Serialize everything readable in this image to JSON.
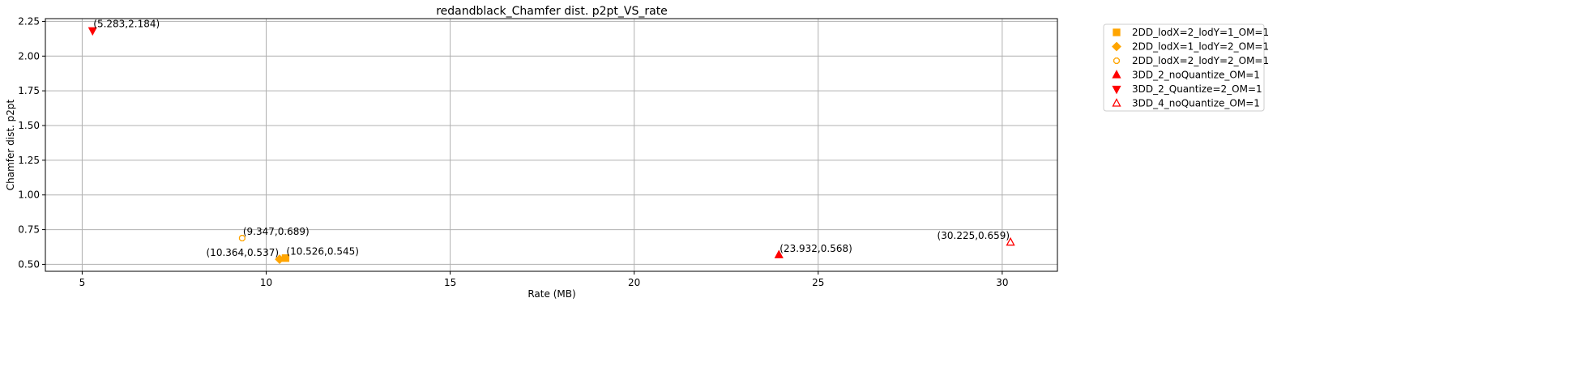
{
  "chart_data": {
    "type": "scatter",
    "title": "redandblack_Chamfer dist. p2pt_VS_rate",
    "xlabel": "Rate (MB)",
    "ylabel": "Chamfer dist. p2pt",
    "xlim": [
      4.0,
      31.5
    ],
    "ylim": [
      0.45,
      2.27
    ],
    "xticks": [
      5,
      10,
      15,
      20,
      25,
      30
    ],
    "yticks": [
      0.5,
      0.75,
      1.0,
      1.25,
      1.5,
      1.75,
      2.0,
      2.25
    ],
    "xtick_labels": [
      "5",
      "10",
      "15",
      "20",
      "25",
      "30"
    ],
    "ytick_labels": [
      "0.50",
      "0.75",
      "1.00",
      "1.25",
      "1.50",
      "1.75",
      "2.00",
      "2.25"
    ],
    "grid": true,
    "legend_position": "outside-top-right",
    "series": [
      {
        "name": "2DD_lodX=2_lodY=1_OM=1",
        "marker": "square",
        "color": "#ffa500",
        "filled": true,
        "points": [
          {
            "x": 10.526,
            "y": 0.545,
            "label": "(10.526,0.545)",
            "label_side": "right"
          }
        ]
      },
      {
        "name": "2DD_lodX=1_lodY=2_OM=1",
        "marker": "diamond",
        "color": "#ffa500",
        "filled": true,
        "points": [
          {
            "x": 10.364,
            "y": 0.537,
            "label": "(10.364,0.537)",
            "label_side": "left"
          }
        ]
      },
      {
        "name": "2DD_lodX=2_lodY=2_OM=1",
        "marker": "octagon",
        "color": "#ffa500",
        "filled": false,
        "points": [
          {
            "x": 9.347,
            "y": 0.689,
            "label": "(9.347,0.689)",
            "label_side": "right"
          }
        ]
      },
      {
        "name": "3DD_2_noQuantize_OM=1",
        "marker": "triangle-up",
        "color": "#ff0000",
        "filled": true,
        "points": [
          {
            "x": 23.932,
            "y": 0.568,
            "label": "(23.932,0.568)",
            "label_side": "right"
          }
        ]
      },
      {
        "name": "3DD_2_Quantize=2_OM=1",
        "marker": "triangle-down",
        "color": "#ff0000",
        "filled": true,
        "points": [
          {
            "x": 5.283,
            "y": 2.184,
            "label": "(5.283,2.184)",
            "label_side": "right"
          }
        ]
      },
      {
        "name": "3DD_4_noQuantize_OM=1",
        "marker": "triangle-up",
        "color": "#ff0000",
        "filled": false,
        "points": [
          {
            "x": 30.225,
            "y": 0.659,
            "label": "(30.225,0.659)",
            "label_side": "left"
          }
        ]
      }
    ]
  }
}
